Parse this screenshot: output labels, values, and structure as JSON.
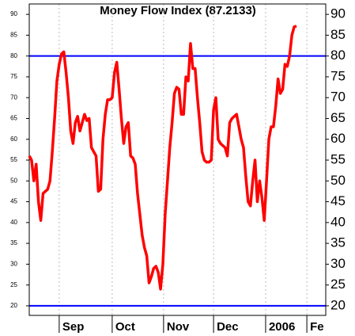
{
  "chart_data": {
    "type": "line",
    "title": "Money Flow Index (87.2133)",
    "series": [
      {
        "name": "Money Flow Index",
        "color": "#ff0000",
        "values": [
          56,
          55,
          50,
          54,
          45,
          40.5,
          47,
          47.5,
          48,
          50,
          57,
          65,
          74,
          78,
          80.5,
          81,
          76,
          70,
          62,
          59,
          64,
          65.5,
          62,
          64,
          66,
          64.5,
          65,
          58,
          57,
          56,
          47.5,
          48,
          60,
          66,
          69.5,
          69.5,
          70,
          76,
          78.5,
          72,
          65,
          59,
          63,
          64,
          56,
          55.5,
          54,
          47,
          42,
          37,
          34,
          32,
          25.5,
          27,
          29,
          29.5,
          28,
          24,
          30,
          42,
          50,
          58,
          64,
          71,
          72.5,
          72,
          66,
          66,
          75,
          74,
          83,
          77,
          77,
          70,
          64,
          57,
          55,
          54.5,
          54.5,
          55,
          67,
          70,
          60,
          59,
          58.5,
          58,
          56,
          64,
          65,
          65.5,
          66,
          63,
          60,
          58,
          51,
          45,
          44,
          50,
          55,
          45,
          50,
          46,
          40.5,
          50,
          60,
          63,
          63,
          68,
          74.5,
          71,
          72,
          78,
          77.5,
          80,
          85,
          87,
          87.2
        ]
      }
    ],
    "xlim": [
      0,
      128.7
    ],
    "xticks": [
      {
        "value": 13,
        "label": "Sep"
      },
      {
        "value": 36,
        "label": "Oct"
      },
      {
        "value": 58.3,
        "label": "Nov"
      },
      {
        "value": 80,
        "label": "Dec"
      },
      {
        "value": 102.6,
        "label": "2006"
      },
      {
        "value": 120.5,
        "label": "Fe"
      }
    ],
    "ylim": [
      17.7,
      92.5
    ],
    "yticks": [
      20,
      25,
      30,
      35,
      40,
      45,
      50,
      55,
      60,
      65,
      70,
      75,
      80,
      85,
      90
    ],
    "hlines": [
      80,
      20
    ],
    "hline_color": "#0000ff",
    "grid": true
  }
}
